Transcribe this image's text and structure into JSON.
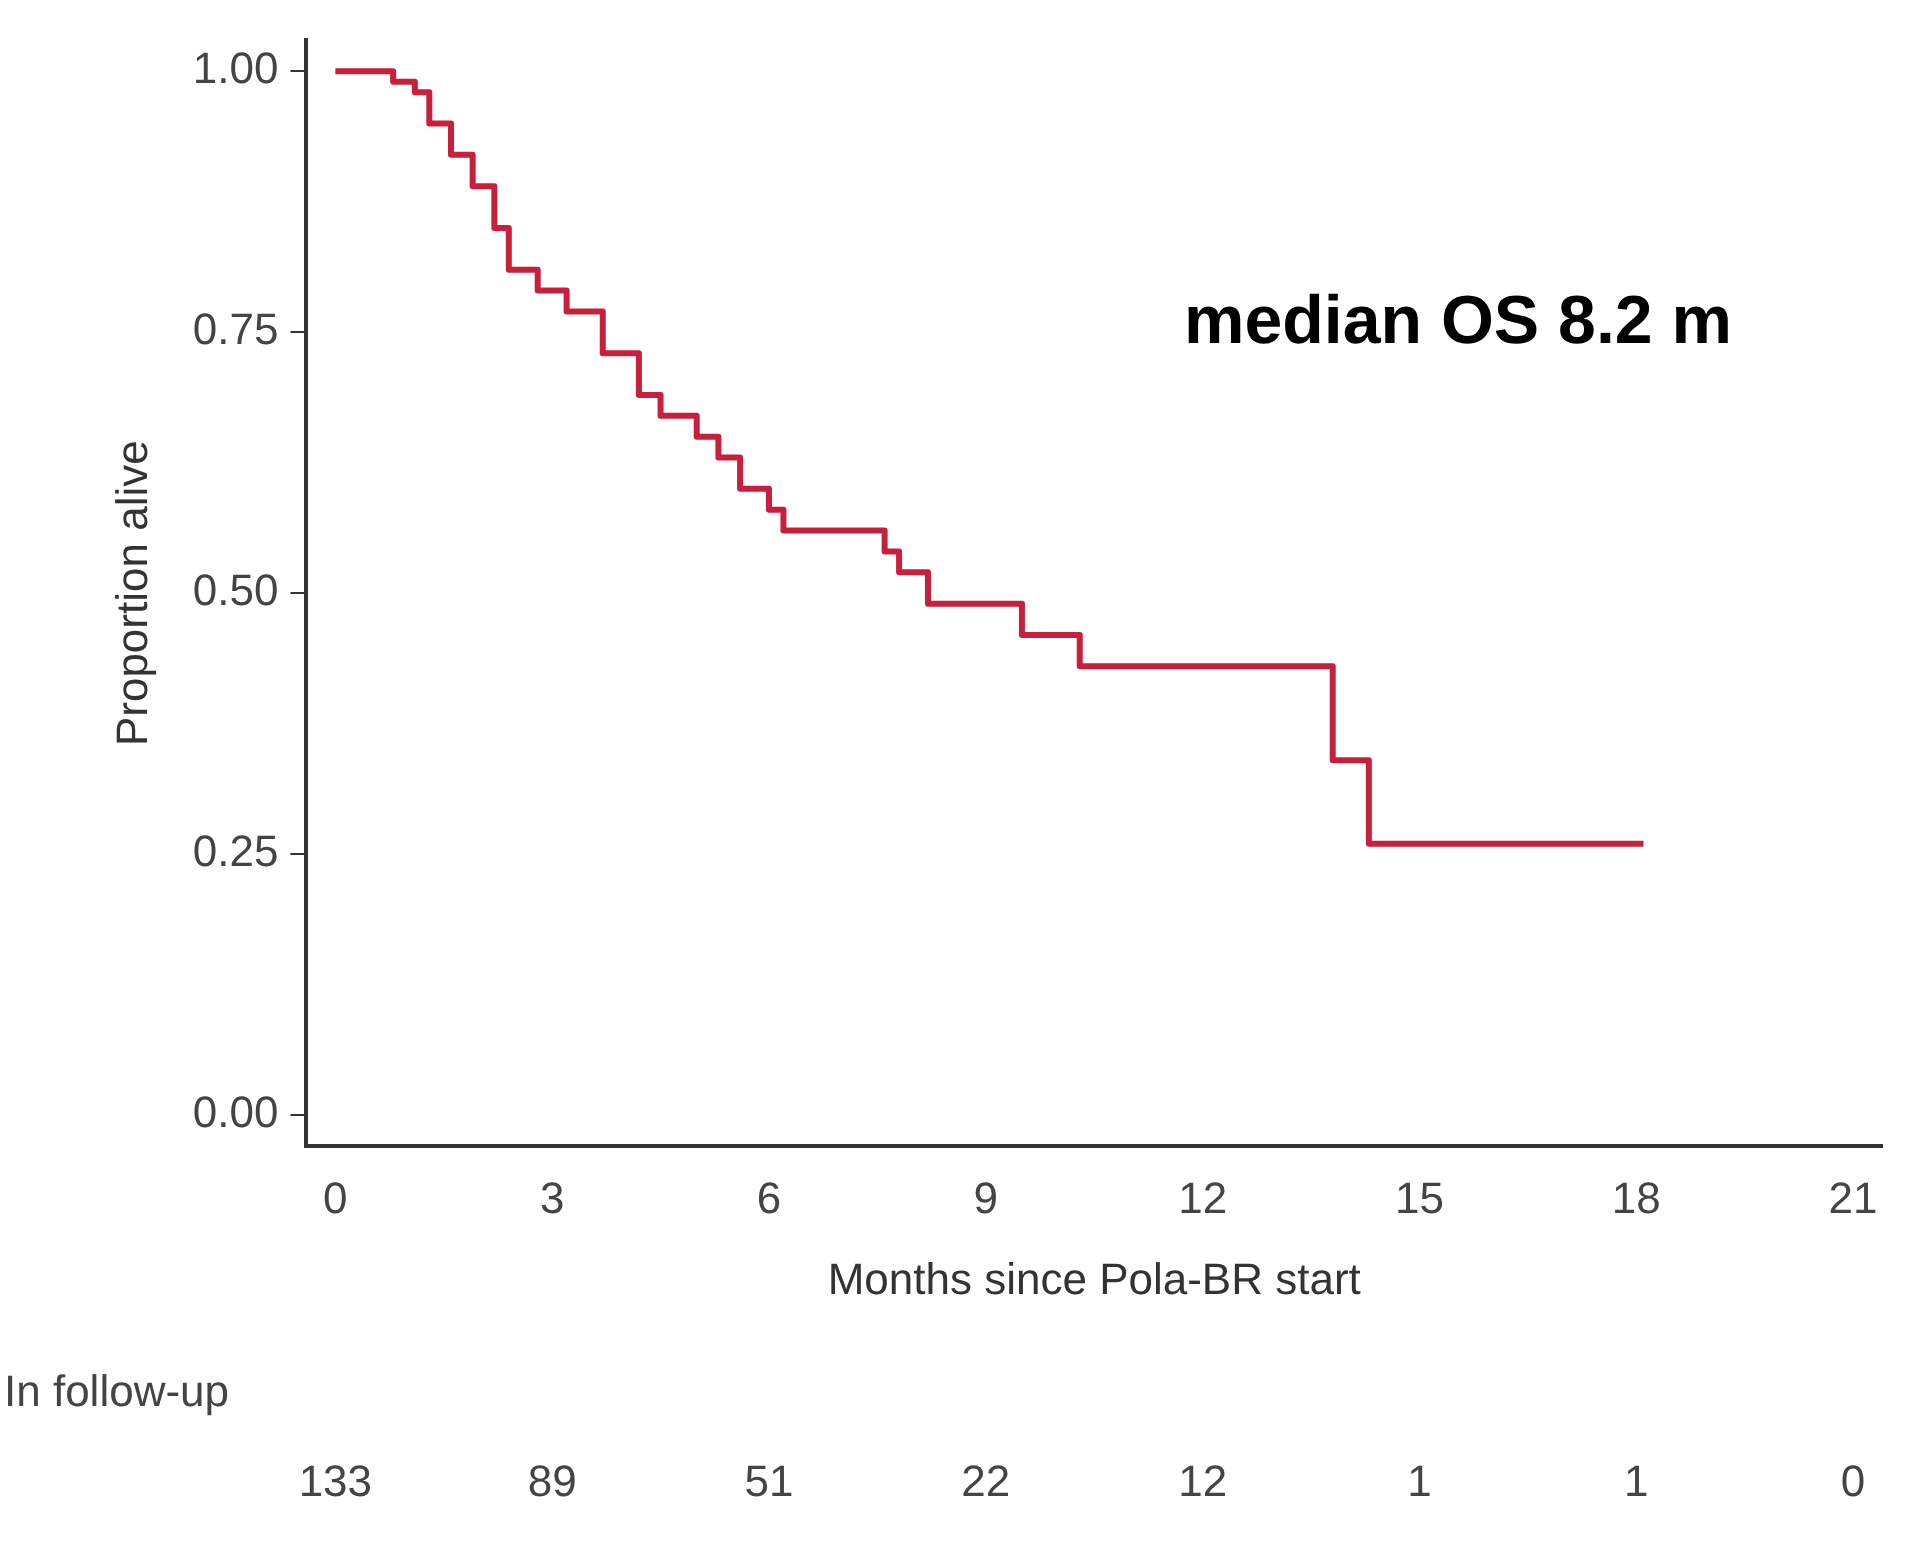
{
  "chart_data": {
    "type": "step",
    "xlabel": "Months since Pola-BR start",
    "ylabel": "Proportion alive",
    "x": [
      0,
      0.8,
      1.1,
      1.3,
      1.6,
      1.9,
      2.2,
      2.4,
      2.8,
      3.2,
      3.7,
      4.2,
      4.5,
      5.0,
      5.3,
      5.6,
      6.0,
      6.2,
      7.6,
      7.8,
      8.2,
      9.5,
      10.3,
      13.8,
      14.3,
      18.1
    ],
    "series": [
      {
        "color": "#c8203c",
        "values": [
          1.0,
          0.99,
          0.98,
          0.95,
          0.92,
          0.89,
          0.85,
          0.81,
          0.79,
          0.77,
          0.73,
          0.69,
          0.67,
          0.65,
          0.63,
          0.6,
          0.58,
          0.56,
          0.54,
          0.52,
          0.49,
          0.46,
          0.43,
          0.34,
          0.26,
          0.26
        ]
      }
    ],
    "xlim": [
      -0.4,
      21.4
    ],
    "xticks": [
      0,
      3,
      6,
      9,
      12,
      15,
      18,
      21
    ],
    "ylim": [
      -0.03,
      1.03
    ],
    "yticks": [
      {
        "value": 0,
        "label": "0.00"
      },
      {
        "value": 0.25,
        "label": "0.25"
      },
      {
        "value": 0.5,
        "label": "0.50"
      },
      {
        "value": 0.75,
        "label": "0.75"
      },
      {
        "value": 1,
        "label": "1.00"
      }
    ],
    "grid": false,
    "legend": false,
    "marker": "none",
    "line_style": "solid",
    "annotations": [
      "median OS 8.2 m",
      "In follow-up",
      "133",
      "89",
      "51",
      "22",
      "12",
      "1",
      "1",
      "0"
    ]
  }
}
